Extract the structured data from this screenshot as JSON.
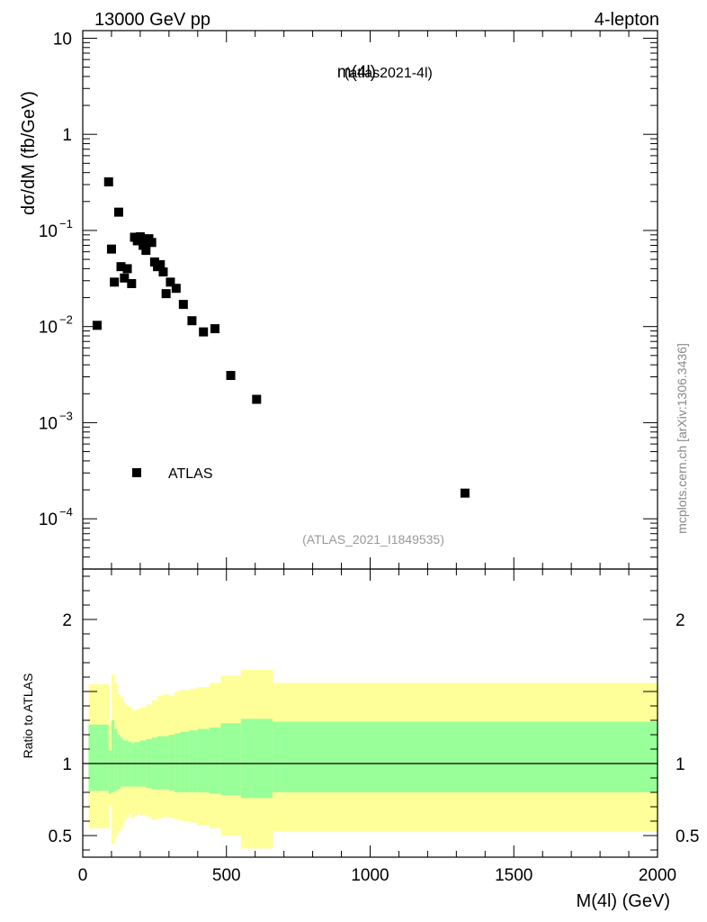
{
  "header": {
    "left": "13000 GeV pp",
    "right": "4-lepton"
  },
  "side_label": "mcplots.cern.ch [arXiv:1306.3436]",
  "colors": {
    "band_outer": "#ffff99",
    "band_inner": "#99ff99",
    "marker": "#000000",
    "ref_label": "#999999"
  },
  "chart_data": [
    {
      "type": "scatter",
      "title": "m(4l)",
      "subtitle": "(atlas2021-4l)",
      "xlabel": "",
      "ylabel": "dσ/dM (fb/GeV)",
      "xlim": [
        0,
        2000
      ],
      "ylim": [
        3e-05,
        12
      ],
      "yscale": "log",
      "y_ticks": [
        {
          "value": 10,
          "label": "10",
          "exp": ""
        },
        {
          "value": 1,
          "label": "1",
          "exp": ""
        },
        {
          "value": 0.1,
          "label": "10",
          "exp": "−1"
        },
        {
          "value": 0.01,
          "label": "10",
          "exp": "−2"
        },
        {
          "value": 0.001,
          "label": "10",
          "exp": "−3"
        },
        {
          "value": 0.0001,
          "label": "10",
          "exp": "−4"
        }
      ],
      "reference_label": "(ATLAS_2021_I1849535)",
      "legend": [
        {
          "name": "ATLAS",
          "marker": "square"
        }
      ],
      "series": [
        {
          "name": "ATLAS",
          "x": [
            50,
            90,
            100,
            110,
            125,
            133,
            145,
            155,
            170,
            180,
            190,
            200,
            210,
            220,
            230,
            240,
            250,
            260,
            270,
            280,
            290,
            305,
            325,
            350,
            380,
            420,
            460,
            515,
            605,
            1330
          ],
          "y": [
            0.0103,
            0.32,
            0.064,
            0.029,
            0.155,
            0.042,
            0.032,
            0.04,
            0.028,
            0.085,
            0.078,
            0.086,
            0.07,
            0.062,
            0.082,
            0.075,
            0.047,
            0.042,
            0.044,
            0.037,
            0.022,
            0.029,
            0.025,
            0.017,
            0.0115,
            0.0088,
            0.0095,
            0.0031,
            0.00175,
            0.000185
          ]
        }
      ]
    },
    {
      "type": "area",
      "title": "",
      "xlabel": "M(4l) (GeV)",
      "ylabel": "Ratio to ATLAS",
      "xlim": [
        0,
        2000
      ],
      "ylim": [
        0.35,
        2.35
      ],
      "x_ticks": [
        0,
        500,
        1000,
        1500,
        2000
      ],
      "y_ticks_left": [
        {
          "value": 2,
          "label": "2"
        },
        {
          "value": 1,
          "label": "1"
        },
        {
          "value": 0.5,
          "label": "0.5"
        }
      ],
      "y_ticks_right": [
        {
          "value": 2,
          "label": "2"
        },
        {
          "value": 1,
          "label": "1"
        },
        {
          "value": 0.5,
          "label": "0.5"
        }
      ],
      "reference_line": 1,
      "bands": {
        "edges": [
          20,
          90,
          100,
          110,
          120,
          130,
          140,
          150,
          160,
          170,
          180,
          190,
          200,
          220,
          240,
          260,
          280,
          300,
          320,
          340,
          370,
          400,
          440,
          480,
          550,
          660,
          2000
        ],
        "outer_low": [
          0.55,
          0.71,
          0.44,
          0.49,
          0.53,
          0.55,
          0.6,
          0.63,
          0.65,
          0.62,
          0.64,
          0.65,
          0.64,
          0.63,
          0.61,
          0.62,
          0.63,
          0.62,
          0.61,
          0.6,
          0.59,
          0.57,
          0.55,
          0.5,
          0.41,
          0.53
        ],
        "outer_high": [
          1.55,
          1.29,
          1.62,
          1.56,
          1.48,
          1.46,
          1.42,
          1.4,
          1.39,
          1.37,
          1.37,
          1.38,
          1.39,
          1.41,
          1.44,
          1.47,
          1.48,
          1.47,
          1.5,
          1.51,
          1.52,
          1.53,
          1.56,
          1.61,
          1.65,
          1.56
        ],
        "inner_low": [
          0.81,
          0.79,
          0.8,
          0.81,
          0.82,
          0.84,
          0.84,
          0.84,
          0.84,
          0.84,
          0.84,
          0.84,
          0.84,
          0.83,
          0.82,
          0.82,
          0.82,
          0.81,
          0.8,
          0.8,
          0.8,
          0.8,
          0.79,
          0.78,
          0.76,
          0.8
        ],
        "inner_high": [
          1.27,
          1.09,
          1.3,
          1.24,
          1.2,
          1.18,
          1.16,
          1.16,
          1.15,
          1.14,
          1.15,
          1.15,
          1.16,
          1.17,
          1.18,
          1.19,
          1.19,
          1.2,
          1.21,
          1.22,
          1.23,
          1.24,
          1.25,
          1.28,
          1.31,
          1.29
        ]
      }
    }
  ]
}
